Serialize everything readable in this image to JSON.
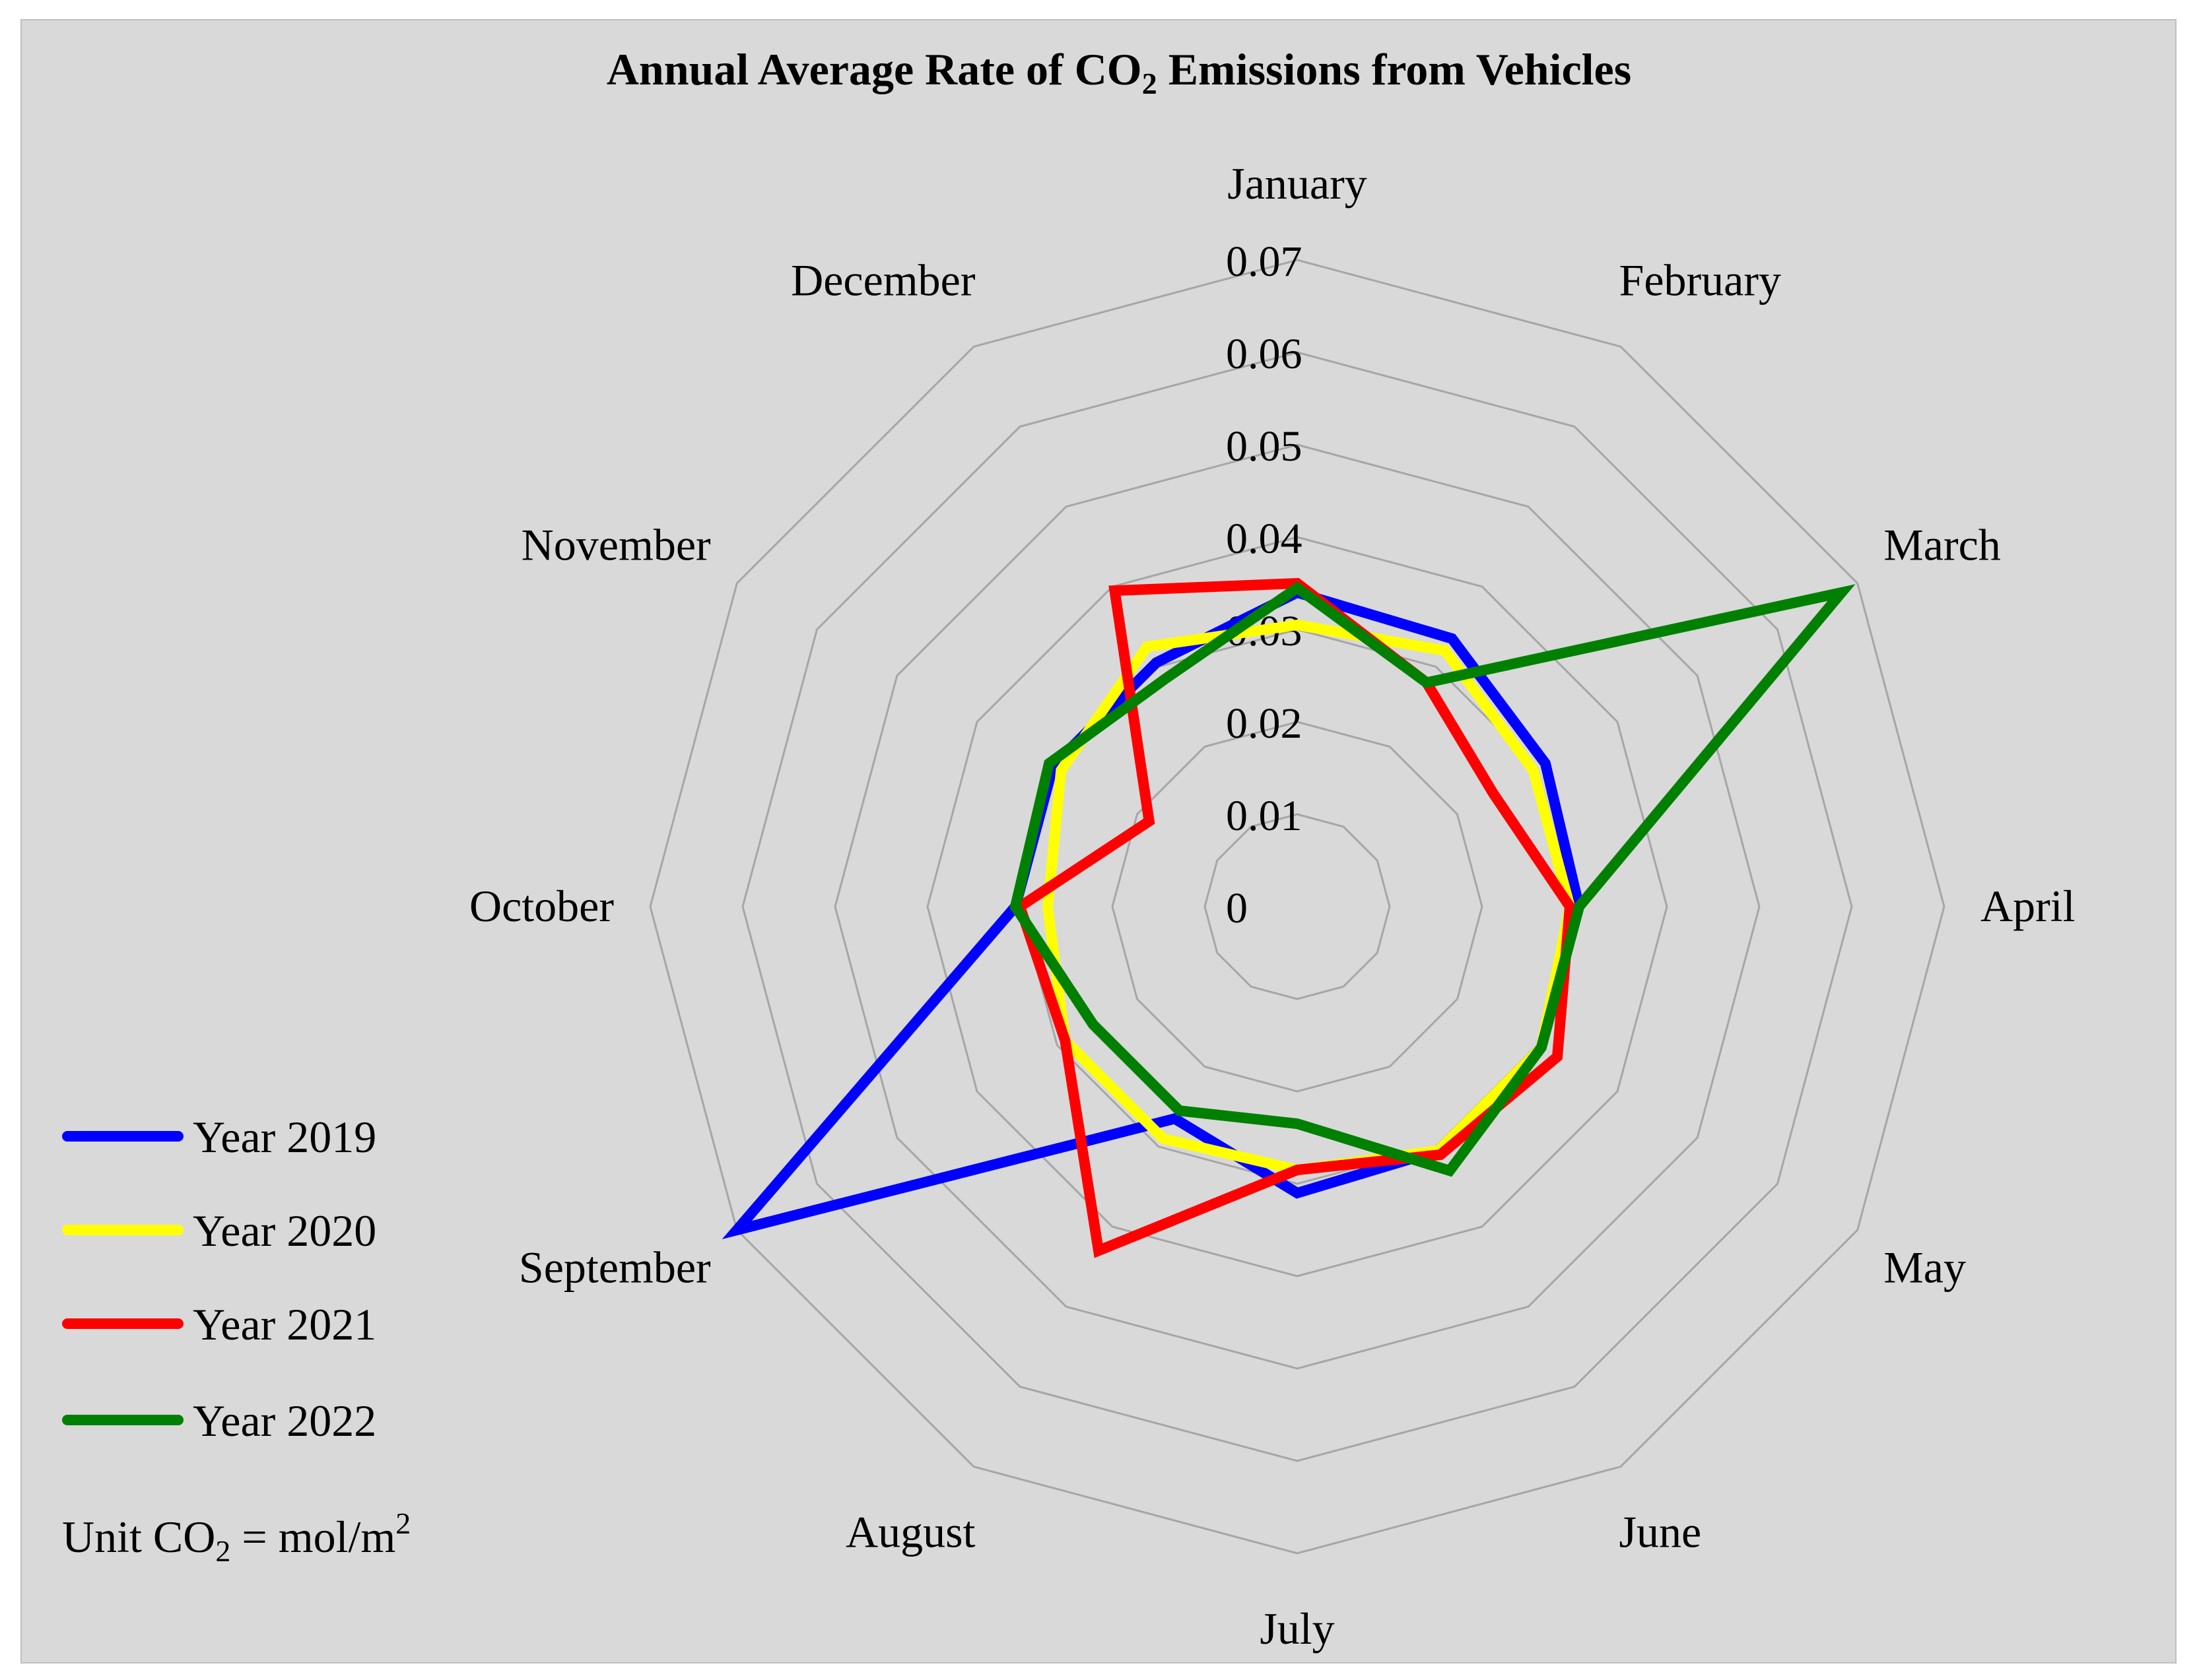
{
  "chart_data": {
    "type": "radar",
    "title_main": "Annual Average Rate of CO",
    "title_sub": "2",
    "title_rest": " Emissions from Vehicles",
    "categories": [
      "January",
      "February",
      "March",
      "April",
      "May",
      "June",
      "July",
      "August",
      "September",
      "October",
      "November",
      "December"
    ],
    "r_ticks": [
      "0",
      "0.01",
      "0.02",
      "0.03",
      "0.04",
      "0.05",
      "0.06",
      "0.07"
    ],
    "r_max": 0.07,
    "series": [
      {
        "name": "Year 2019",
        "color": "#0000ff",
        "values": [
          0.034,
          0.0335,
          0.031,
          0.0305,
          0.0305,
          0.0305,
          0.031,
          0.0265,
          0.07,
          0.0305,
          0.0305,
          0.0305
        ]
      },
      {
        "name": "Year 2020",
        "color": "#ffff00",
        "values": [
          0.0305,
          0.032,
          0.0295,
          0.0295,
          0.0305,
          0.0305,
          0.0285,
          0.029,
          0.029,
          0.027,
          0.0295,
          0.0325
        ]
      },
      {
        "name": "Year 2021",
        "color": "#ff0000",
        "values": [
          0.035,
          0.028,
          0.0245,
          0.0295,
          0.0325,
          0.031,
          0.0285,
          0.043,
          0.029,
          0.03,
          0.0185,
          0.0395
        ]
      },
      {
        "name": "Year 2022",
        "color": "#008000",
        "values": [
          0.0345,
          0.028,
          0.068,
          0.0305,
          0.0305,
          0.033,
          0.0235,
          0.0255,
          0.0255,
          0.0305,
          0.031,
          0.0285
        ]
      }
    ],
    "legend_position": "bottom-left",
    "unit_main": "Unit CO",
    "unit_sub": "2",
    "unit_rest": " = mol/m",
    "unit_sup": "2"
  }
}
